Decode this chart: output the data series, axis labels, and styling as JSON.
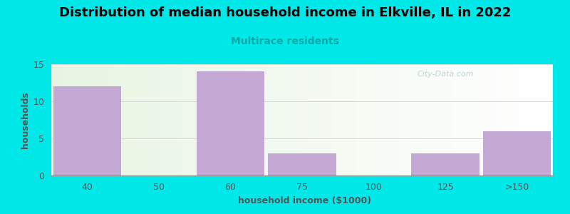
{
  "title": "Distribution of median household income in Elkville, IL in 2022",
  "subtitle": "Multirace residents",
  "subtitle_color": "#00a8a8",
  "xlabel": "household income ($1000)",
  "ylabel": "households",
  "categories": [
    "40",
    "50",
    "60",
    "75",
    "100",
    "125",
    ">150"
  ],
  "values": [
    12,
    0,
    14,
    3,
    0,
    3,
    6
  ],
  "bar_color": "#c4a8d4",
  "ylim": [
    0,
    15
  ],
  "yticks": [
    0,
    5,
    10,
    15
  ],
  "background_color": "#00e8e8",
  "title_fontsize": 13,
  "subtitle_fontsize": 10,
  "axis_label_fontsize": 9,
  "tick_fontsize": 9,
  "watermark": "City-Data.com"
}
